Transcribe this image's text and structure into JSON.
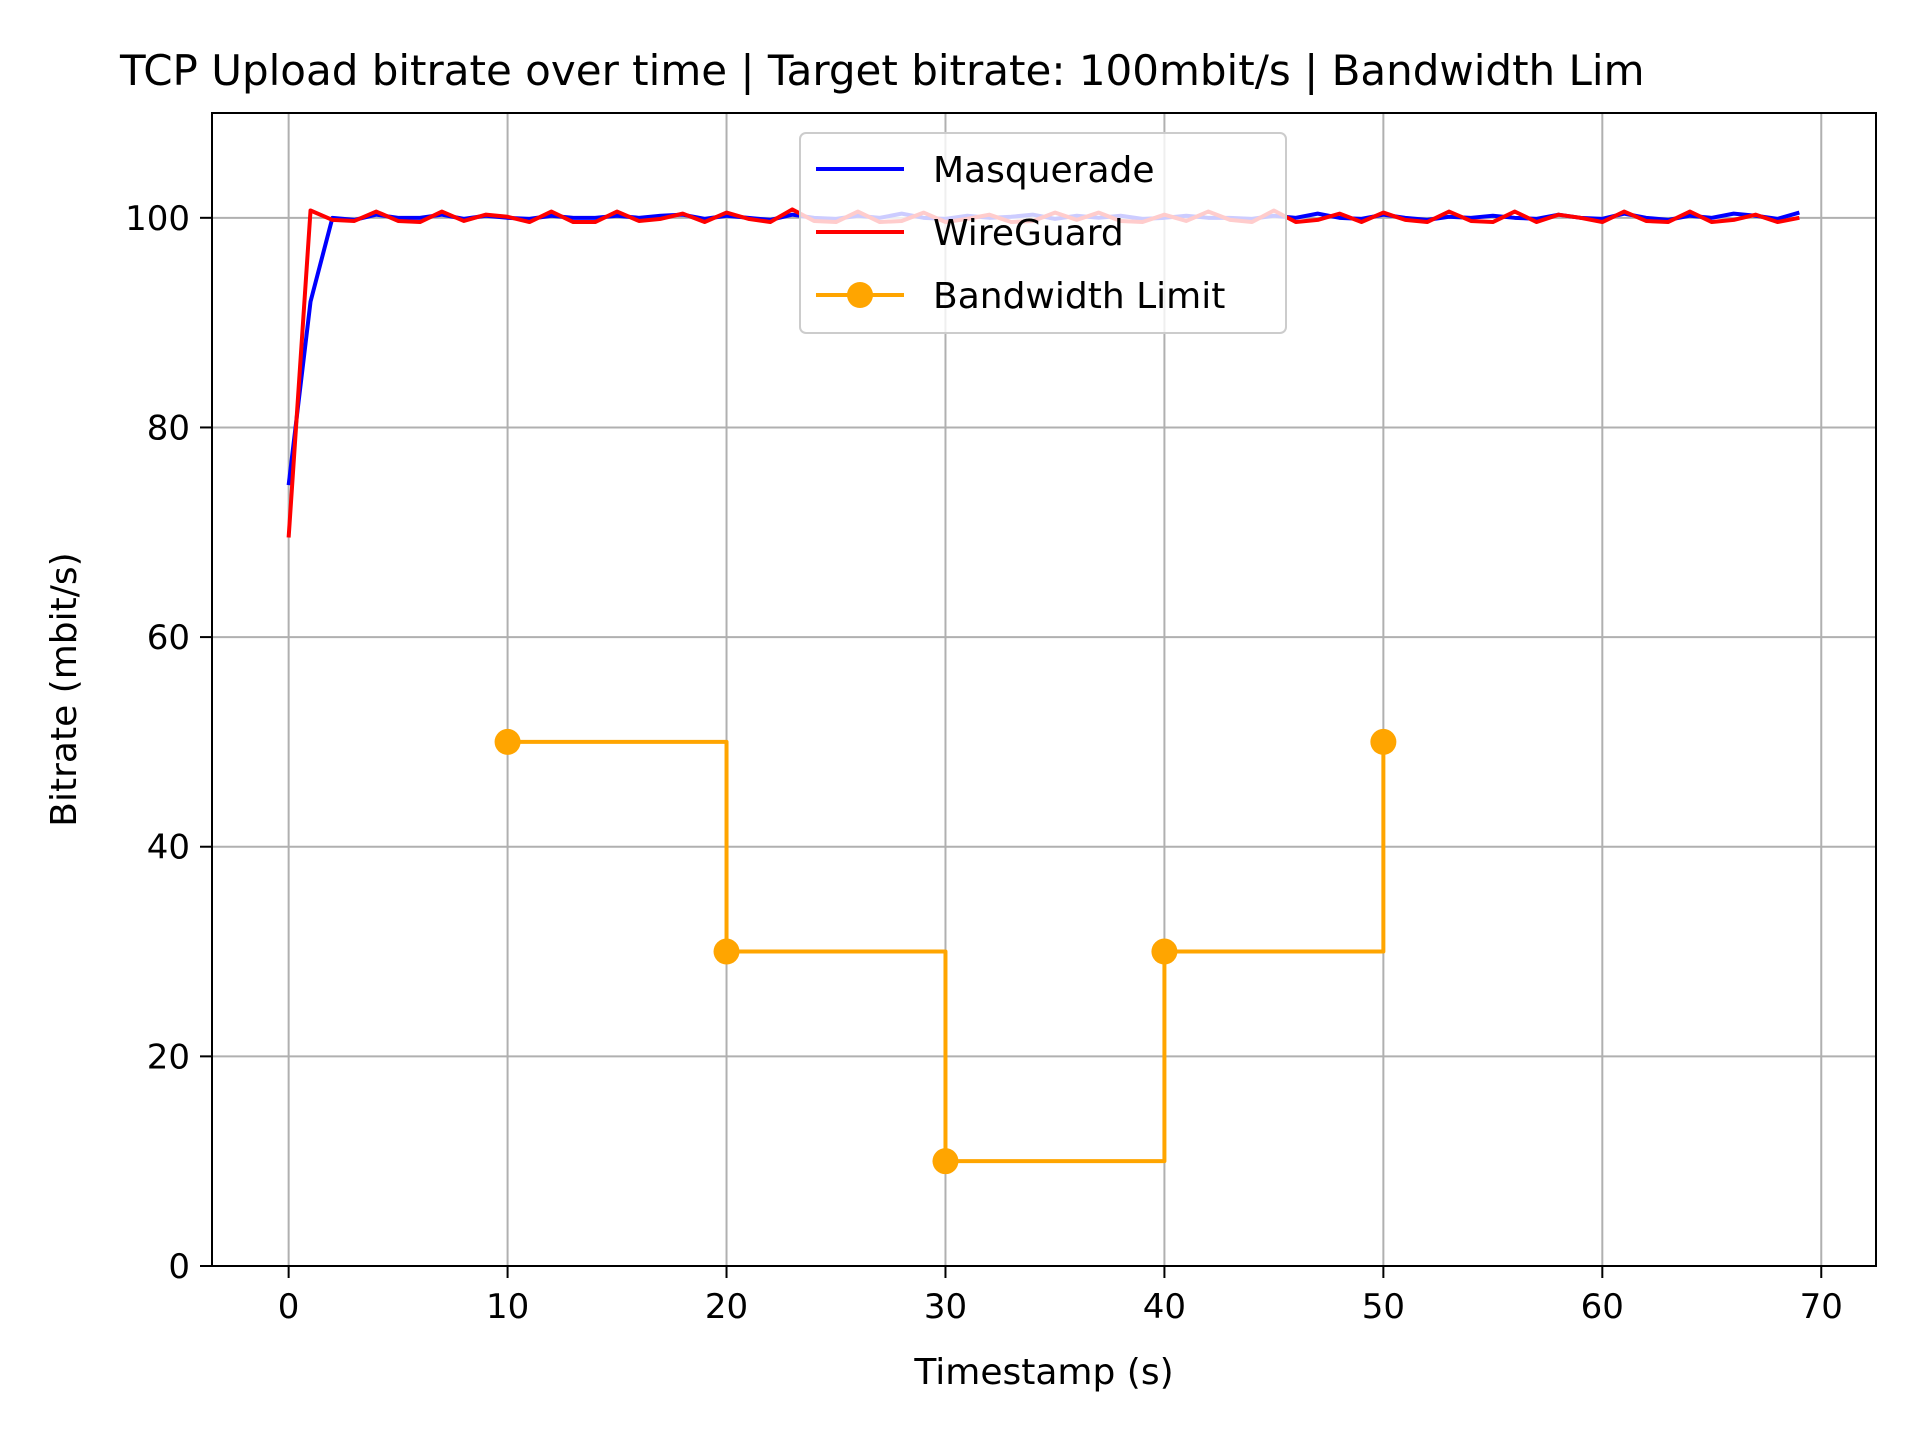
{
  "chart_data": {
    "type": "line",
    "title": "TCP Upload bitrate over time | Target bitrate: 100mbit/s | Bandwidth Lim",
    "xlabel": "Timestamp (s)",
    "ylabel": "Bitrate (mbit/s)",
    "xlim": [
      -3.5,
      72.5
    ],
    "ylim": [
      0,
      110
    ],
    "xticks": [
      0,
      10,
      20,
      30,
      40,
      50,
      60,
      70
    ],
    "yticks": [
      0,
      20,
      40,
      60,
      80,
      100
    ],
    "grid": true,
    "legend_position": "top-center",
    "series": [
      {
        "name": "Masquerade",
        "color": "#0000ff",
        "style": "line",
        "x": [
          0,
          1,
          2,
          3,
          4,
          5,
          6,
          7,
          8,
          9,
          10,
          11,
          12,
          13,
          14,
          15,
          16,
          17,
          18,
          19,
          20,
          21,
          22,
          23,
          24,
          25,
          26,
          27,
          28,
          29,
          30,
          31,
          32,
          33,
          34,
          35,
          36,
          37,
          38,
          39,
          40,
          41,
          42,
          43,
          44,
          45,
          46,
          47,
          48,
          49,
          50,
          51,
          52,
          53,
          54,
          55,
          56,
          57,
          58,
          59,
          60,
          61,
          62,
          63,
          64,
          65,
          66,
          67,
          68,
          69
        ],
        "y": [
          74.5,
          92.0,
          100.0,
          99.8,
          100.3,
          100.0,
          100.0,
          100.3,
          99.9,
          100.2,
          100.0,
          99.9,
          100.2,
          100.0,
          100.0,
          100.2,
          100.0,
          100.2,
          100.3,
          99.9,
          100.2,
          100.0,
          99.8,
          100.3,
          100.0,
          99.9,
          100.2,
          100.0,
          100.4,
          100.0,
          99.9,
          100.2,
          100.0,
          100.1,
          100.3,
          99.9,
          100.2,
          100.0,
          100.2,
          99.9,
          100.0,
          100.2,
          100.0,
          100.0,
          99.9,
          100.2,
          100.0,
          100.4,
          100.0,
          99.9,
          100.3,
          100.0,
          99.8,
          100.1,
          100.0,
          100.2,
          100.0,
          99.9,
          100.3,
          100.0,
          99.9,
          100.4,
          100.0,
          99.8,
          100.2,
          100.0,
          100.4,
          100.2,
          99.9,
          100.5
        ]
      },
      {
        "name": "WireGuard",
        "color": "#ff0000",
        "style": "line",
        "x": [
          0,
          1,
          2,
          3,
          4,
          5,
          6,
          7,
          8,
          9,
          10,
          11,
          12,
          13,
          14,
          15,
          16,
          17,
          18,
          19,
          20,
          21,
          22,
          23,
          24,
          25,
          26,
          27,
          28,
          29,
          30,
          31,
          32,
          33,
          34,
          35,
          36,
          37,
          38,
          39,
          40,
          41,
          42,
          43,
          44,
          45,
          46,
          47,
          48,
          49,
          50,
          51,
          52,
          53,
          54,
          55,
          56,
          57,
          58,
          59,
          60,
          61,
          62,
          63,
          64,
          65,
          66,
          67,
          68,
          69
        ],
        "y": [
          69.5,
          100.7,
          99.8,
          99.7,
          100.6,
          99.7,
          99.6,
          100.6,
          99.7,
          100.3,
          100.1,
          99.6,
          100.6,
          99.6,
          99.6,
          100.6,
          99.7,
          99.9,
          100.4,
          99.6,
          100.5,
          99.9,
          99.6,
          100.8,
          99.7,
          99.6,
          100.6,
          99.6,
          99.7,
          100.5,
          99.6,
          99.9,
          100.3,
          99.6,
          99.7,
          100.5,
          99.8,
          100.5,
          99.7,
          99.6,
          100.3,
          99.7,
          100.6,
          99.8,
          99.6,
          100.7,
          99.6,
          99.8,
          100.4,
          99.6,
          100.5,
          99.8,
          99.6,
          100.6,
          99.7,
          99.6,
          100.6,
          99.6,
          100.3,
          100.0,
          99.6,
          100.6,
          99.7,
          99.6,
          100.6,
          99.6,
          99.8,
          100.3,
          99.6,
          100.0
        ]
      },
      {
        "name": "Bandwidth Limit",
        "color": "#ffa500",
        "style": "step-post-markers",
        "x": [
          10,
          20,
          30,
          40,
          50
        ],
        "y": [
          50,
          30,
          10,
          30,
          50
        ]
      }
    ]
  }
}
